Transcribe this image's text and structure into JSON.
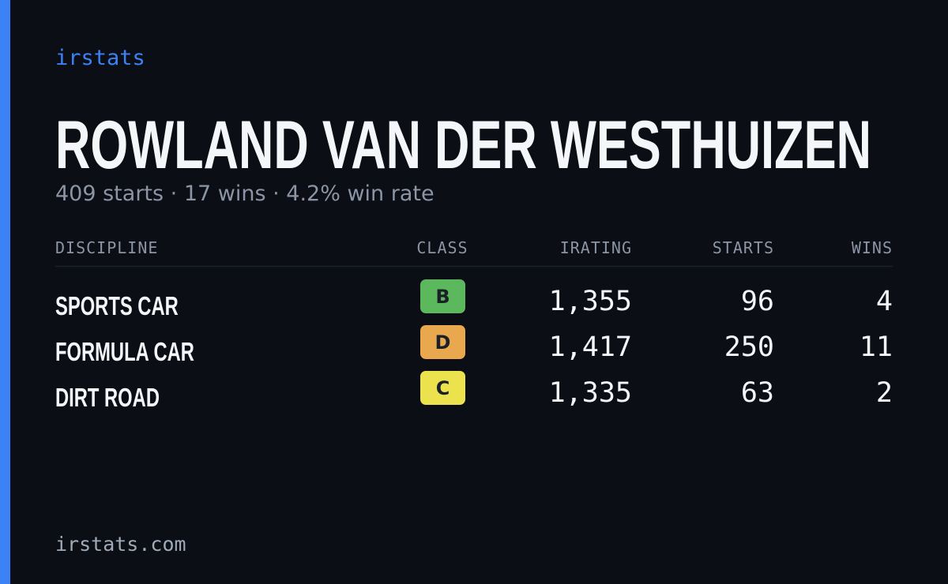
{
  "brand": "irstats",
  "title": "ROWLAND VAN DER WESTHUIZEN",
  "subtitle": "409 starts · 17 wins · 4.2% win rate",
  "table": {
    "headers": [
      "DISCIPLINE",
      "CLASS",
      "IRATING",
      "STARTS",
      "WINS"
    ],
    "rows": [
      {
        "discipline": "SPORTS CAR",
        "class": "B",
        "class_color": "#5cb85c",
        "irating": "1,355",
        "starts": 96,
        "wins": 4
      },
      {
        "discipline": "FORMULA CAR",
        "class": "D",
        "class_color": "#eaa84e",
        "irating": "1,417",
        "starts": 250,
        "wins": 11
      },
      {
        "discipline": "DIRT ROAD",
        "class": "C",
        "class_color": "#ece24e",
        "irating": "1,335",
        "starts": 63,
        "wins": 2
      }
    ]
  },
  "footer": "irstats.com"
}
